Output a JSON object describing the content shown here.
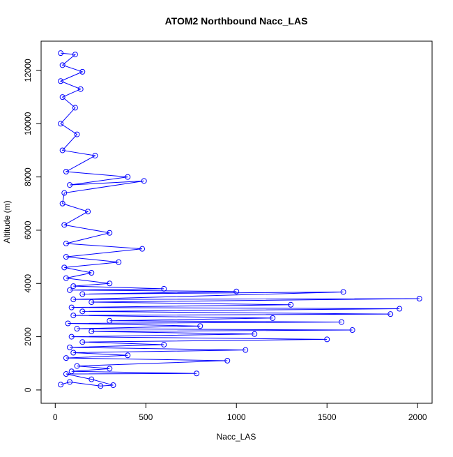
{
  "chart_data": {
    "type": "line",
    "markers": true,
    "title": "ATOM2 Northbound Nacc_LAS",
    "x_label": "Nacc_LAS",
    "y_label": "Altitude (m)",
    "color": "#0000ff",
    "x": [
      30,
      80,
      250,
      320,
      200,
      60,
      780,
      90,
      300,
      120,
      950,
      60,
      400,
      100,
      1050,
      80,
      600,
      150,
      1500,
      90,
      1100,
      200,
      1640,
      120,
      800,
      70,
      1580,
      300,
      1200,
      100,
      1850,
      150,
      1900,
      90,
      1300,
      200,
      2010,
      100,
      1590,
      150,
      1000,
      80,
      600,
      100,
      300,
      60,
      200,
      50,
      350,
      60,
      480,
      60,
      300,
      50,
      180,
      40,
      50,
      490,
      80,
      400,
      60,
      220,
      40,
      120,
      30,
      110,
      40,
      140,
      30,
      150,
      40,
      110,
      30
    ],
    "values": [
      200,
      300,
      150,
      180,
      400,
      600,
      620,
      700,
      800,
      900,
      1100,
      1200,
      1300,
      1400,
      1500,
      1600,
      1700,
      1800,
      1900,
      2000,
      2100,
      2200,
      2250,
      2300,
      2400,
      2500,
      2550,
      2600,
      2700,
      2800,
      2850,
      2950,
      3050,
      3100,
      3200,
      3300,
      3430,
      3400,
      3680,
      3600,
      3700,
      3750,
      3800,
      3900,
      4000,
      4200,
      4400,
      4600,
      4800,
      5000,
      5300,
      5500,
      5900,
      6200,
      6700,
      7000,
      7400,
      7850,
      7700,
      8000,
      8200,
      8800,
      9000,
      9600,
      10000,
      10600,
      11000,
      11300,
      11600,
      11950,
      12200,
      12600,
      12650
    ],
    "xlim": [
      -78,
      2080
    ],
    "ylim": [
      -500,
      13100
    ],
    "xticks": [
      0,
      500,
      1000,
      1500,
      2000
    ],
    "yticks": [
      0,
      2000,
      4000,
      6000,
      8000,
      10000,
      12000
    ]
  }
}
